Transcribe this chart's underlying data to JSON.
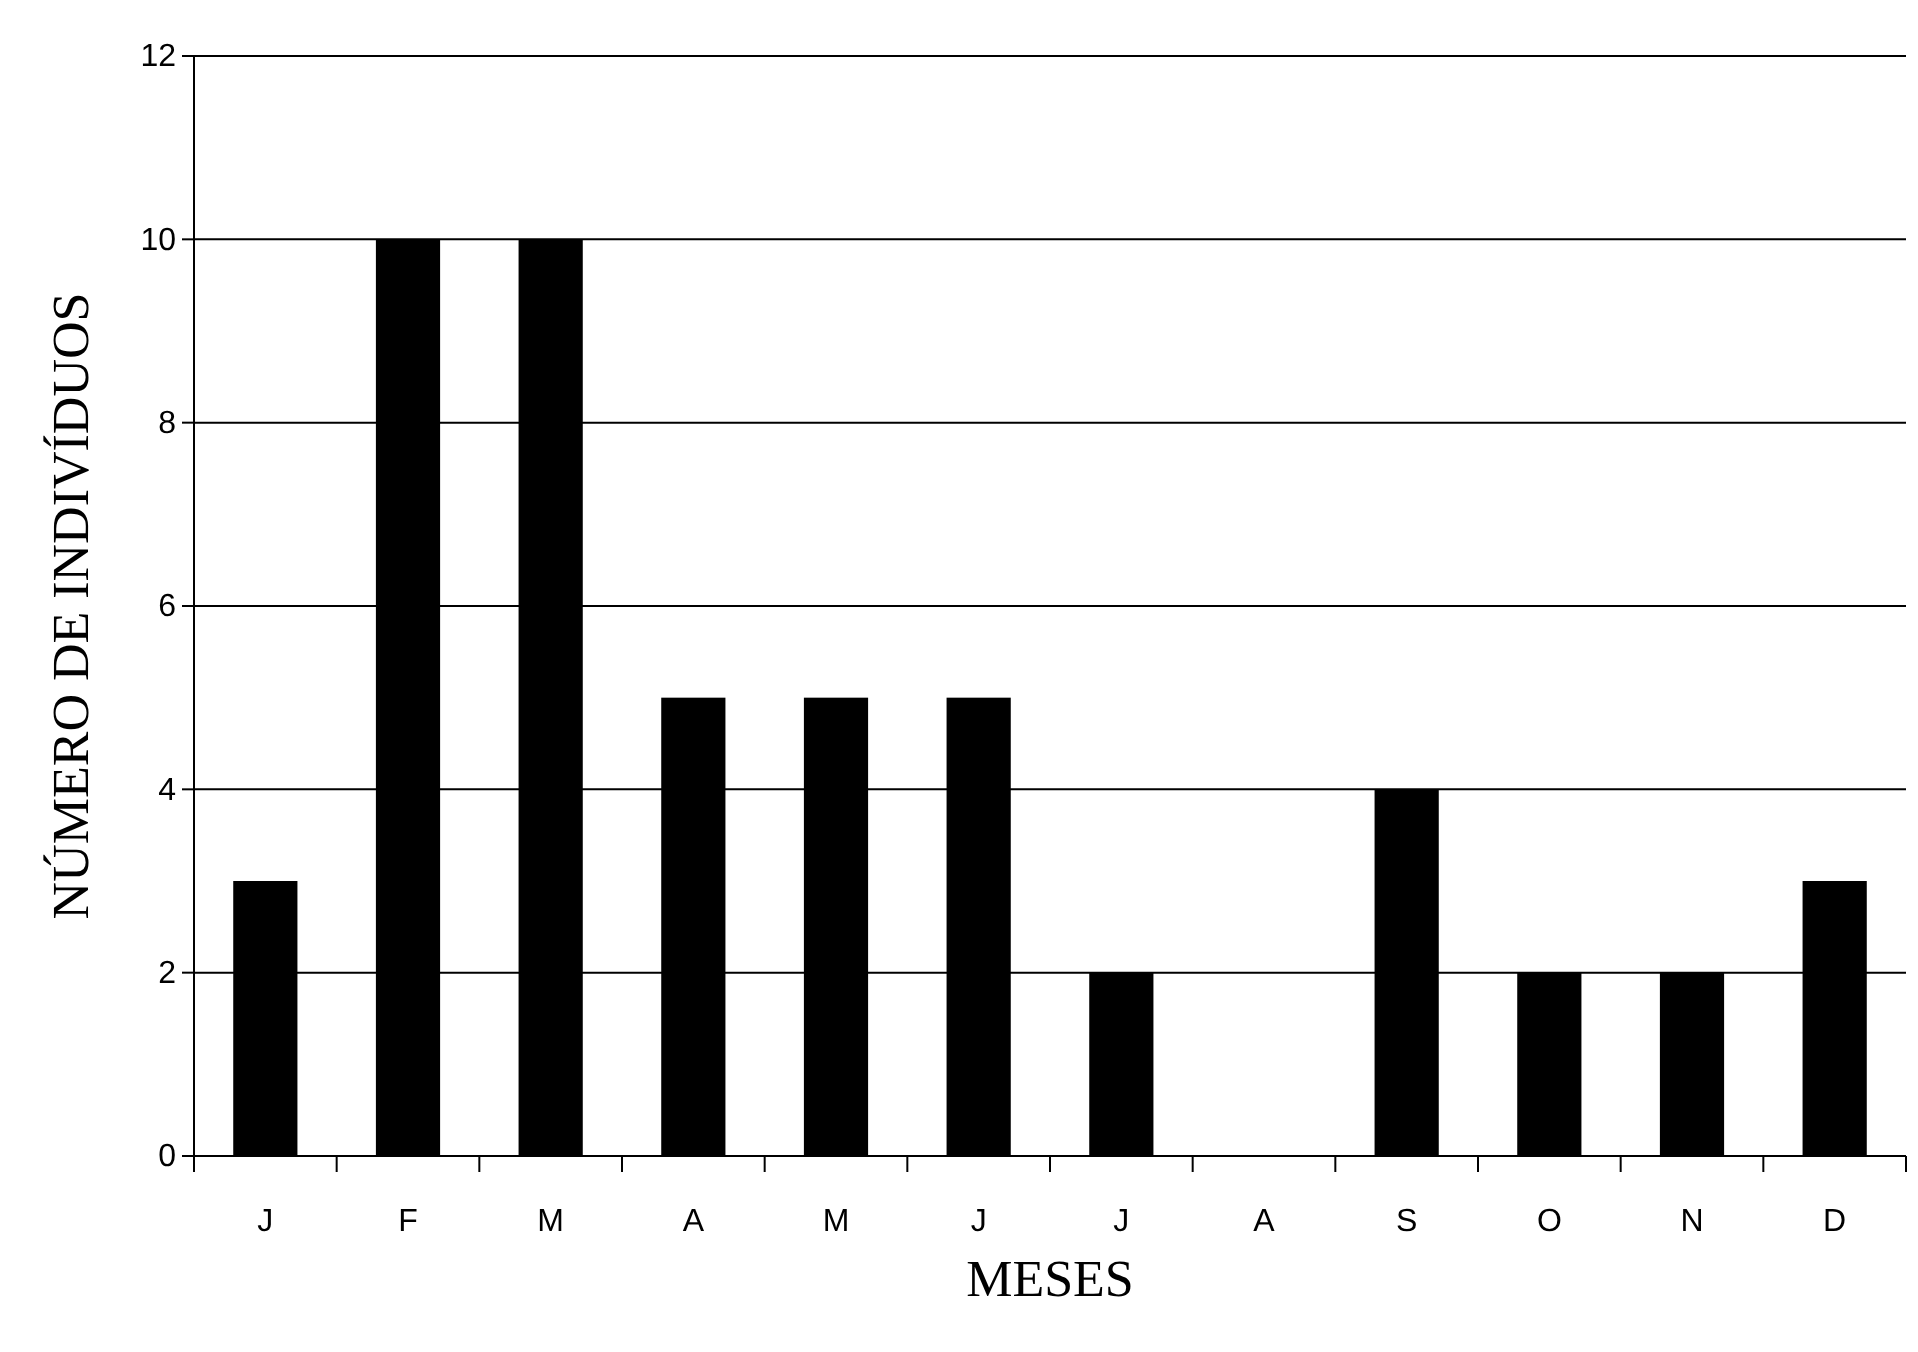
{
  "chart_data": {
    "type": "bar",
    "xlabel": "MESES",
    "ylabel": "NÚMERO DE INDIVÍDUOS",
    "categories": [
      "J",
      "F",
      "M",
      "A",
      "M",
      "J",
      "J",
      "A",
      "S",
      "O",
      "N",
      "D"
    ],
    "series": [
      {
        "color": "#000000",
        "values": [
          3,
          10,
          10,
          5,
          5,
          5,
          2,
          0,
          4,
          2,
          2,
          3
        ]
      }
    ],
    "ylim": [
      0,
      12
    ],
    "yticks": [
      0,
      2,
      4,
      6,
      8,
      10,
      12
    ],
    "grid": "y"
  }
}
